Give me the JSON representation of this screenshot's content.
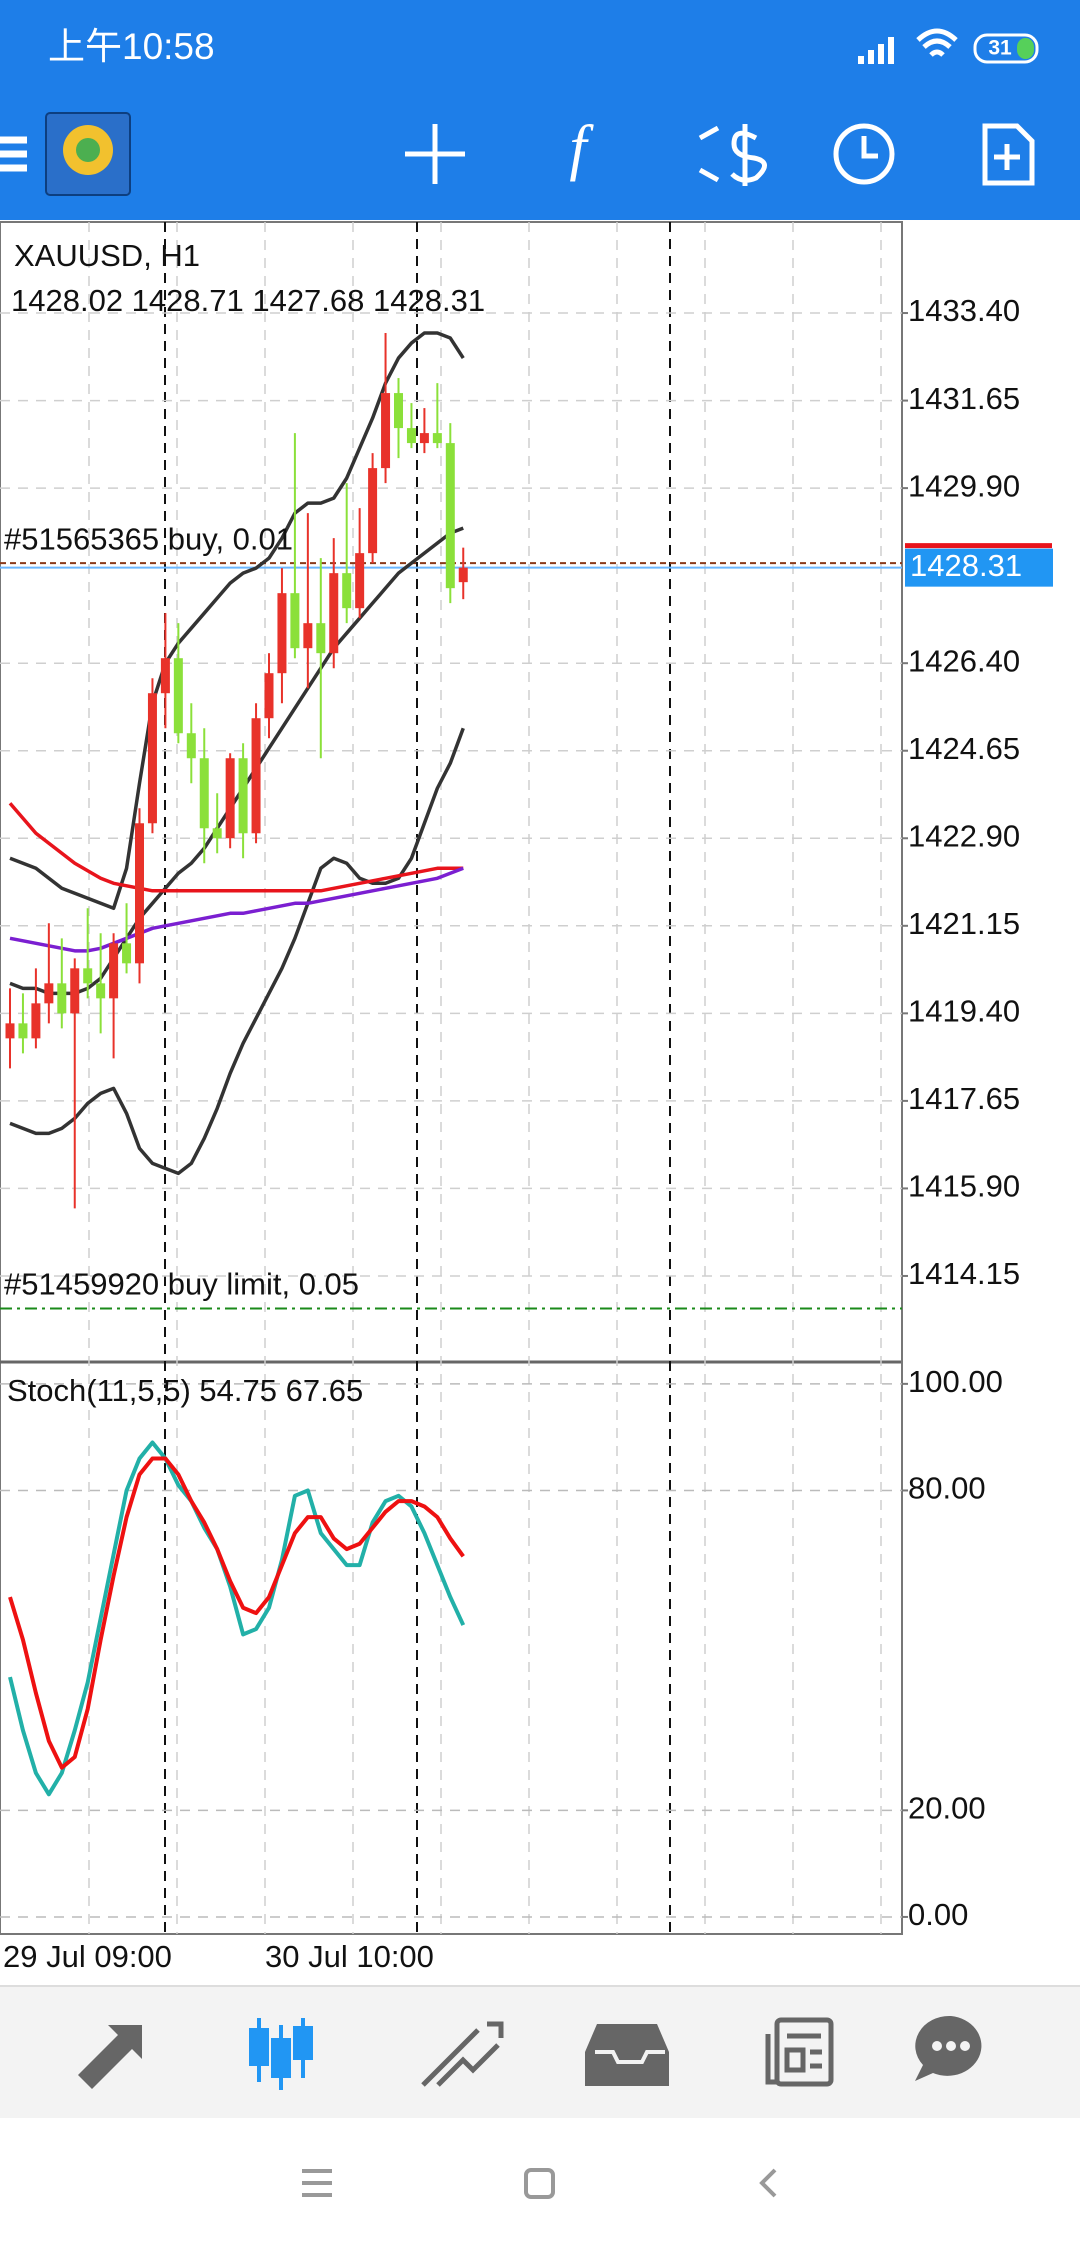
{
  "status_bar": {
    "time": "上午10:58",
    "battery": "31"
  },
  "chart": {
    "symbol": "XAUUSD, H1",
    "ohlc_text": "1428.02 1428.71 1427.68 1428.31",
    "ylim": [
      1412.43,
      1435.22
    ],
    "yticks": [
      {
        "value": 1433.4,
        "label": "1433.40"
      },
      {
        "value": 1431.65,
        "label": "1431.65"
      },
      {
        "value": 1429.9,
        "label": "1429.90"
      },
      {
        "value": 1426.4,
        "label": "1426.40"
      },
      {
        "value": 1424.65,
        "label": "1424.65"
      },
      {
        "value": 1422.9,
        "label": "1422.90"
      },
      {
        "value": 1421.15,
        "label": "1421.15"
      },
      {
        "value": 1419.4,
        "label": "1419.40"
      },
      {
        "value": 1417.65,
        "label": "1417.65"
      },
      {
        "value": 1415.9,
        "label": "1415.90"
      },
      {
        "value": 1414.15,
        "label": "1414.15"
      }
    ],
    "current_price": {
      "value": 1428.31,
      "label": "1428.31",
      "color": "#2196f3"
    },
    "bull_color": "#e8322a",
    "bear_color": "#8be03a",
    "open": [
      1418.9,
      1419.2,
      1418.9,
      1419.6,
      1420.0,
      1419.4,
      1420.3,
      1420.0,
      1419.7,
      1420.8,
      1420.4,
      1423.2,
      1425.8,
      1426.5,
      1425.0,
      1424.5,
      1423.1,
      1422.9,
      1424.5,
      1423.0,
      1425.3,
      1426.2,
      1427.8,
      1426.7,
      1427.2,
      1426.6,
      1428.2,
      1427.5,
      1428.6,
      1430.3,
      1431.8,
      1431.1,
      1430.8,
      1431.0,
      1430.8,
      1428.02
    ],
    "high": [
      1419.9,
      1419.8,
      1420.3,
      1421.2,
      1420.9,
      1420.5,
      1421.5,
      1421.0,
      1421.0,
      1421.6,
      1423.5,
      1426.1,
      1427.4,
      1427.2,
      1425.6,
      1425.1,
      1423.8,
      1424.6,
      1424.8,
      1425.6,
      1426.6,
      1428.3,
      1431.0,
      1429.4,
      1428.5,
      1428.9,
      1430.0,
      1429.5,
      1430.6,
      1433.0,
      1432.1,
      1431.6,
      1431.5,
      1432.0,
      1431.2,
      1428.71
    ],
    "low": [
      1418.3,
      1418.6,
      1418.7,
      1419.2,
      1419.1,
      1415.5,
      1419.7,
      1419.0,
      1418.5,
      1420.2,
      1420.0,
      1423.0,
      1425.1,
      1424.8,
      1424.0,
      1422.4,
      1422.6,
      1422.7,
      1422.5,
      1422.8,
      1424.9,
      1425.6,
      1426.5,
      1425.9,
      1424.5,
      1426.3,
      1427.2,
      1427.3,
      1428.4,
      1430.0,
      1430.5,
      1430.7,
      1430.6,
      1430.7,
      1427.6,
      1427.68
    ],
    "close": [
      1419.2,
      1418.9,
      1419.6,
      1420.0,
      1419.4,
      1420.3,
      1420.0,
      1419.7,
      1420.8,
      1420.4,
      1423.2,
      1425.8,
      1426.5,
      1425.0,
      1424.5,
      1423.1,
      1422.9,
      1424.5,
      1423.0,
      1425.3,
      1426.2,
      1427.8,
      1426.7,
      1427.2,
      1426.6,
      1428.2,
      1427.5,
      1428.6,
      1430.3,
      1431.8,
      1431.1,
      1430.8,
      1431.0,
      1430.8,
      1427.9,
      1428.31
    ],
    "lines": [
      {
        "color": "#333333",
        "values": [
          1422.5,
          1422.4,
          1422.3,
          1422.1,
          1421.9,
          1421.8,
          1421.7,
          1421.6,
          1421.5,
          1422.3,
          1424.0,
          1425.6,
          1426.4,
          1426.8,
          1427.1,
          1427.4,
          1427.7,
          1428.0,
          1428.2,
          1428.3,
          1428.5,
          1428.9,
          1429.4,
          1429.6,
          1429.6,
          1429.7,
          1430.1,
          1430.7,
          1431.3,
          1432.0,
          1432.5,
          1432.8,
          1433.0,
          1433.0,
          1432.9,
          1432.5
        ]
      },
      {
        "color": "#333333",
        "values": [
          1420.0,
          1419.9,
          1419.9,
          1419.8,
          1419.8,
          1419.8,
          1419.9,
          1420.1,
          1420.5,
          1420.9,
          1421.3,
          1421.6,
          1421.9,
          1422.2,
          1422.4,
          1422.7,
          1423.1,
          1423.5,
          1423.9,
          1424.3,
          1424.7,
          1425.1,
          1425.5,
          1425.9,
          1426.3,
          1426.7,
          1427.0,
          1427.3,
          1427.6,
          1427.9,
          1428.2,
          1428.4,
          1428.6,
          1428.8,
          1429.0,
          1429.1
        ]
      },
      {
        "color": "#333333",
        "values": [
          1417.2,
          1417.1,
          1417.0,
          1417.0,
          1417.1,
          1417.3,
          1417.6,
          1417.8,
          1417.9,
          1417.4,
          1416.7,
          1416.4,
          1416.3,
          1416.2,
          1416.4,
          1416.9,
          1417.5,
          1418.2,
          1418.8,
          1419.3,
          1419.8,
          1420.3,
          1420.9,
          1421.6,
          1422.3,
          1422.5,
          1422.4,
          1422.1,
          1422.0,
          1422.0,
          1422.1,
          1422.5,
          1423.2,
          1423.9,
          1424.4,
          1425.1
        ]
      },
      {
        "color": "#e8141c",
        "values": [
          1423.6,
          1423.3,
          1423.0,
          1422.8,
          1422.6,
          1422.4,
          1422.25,
          1422.1,
          1422.0,
          1421.95,
          1421.9,
          1421.85,
          1421.85,
          1421.85,
          1421.85,
          1421.85,
          1421.85,
          1421.85,
          1421.85,
          1421.85,
          1421.85,
          1421.85,
          1421.85,
          1421.85,
          1421.85,
          1421.9,
          1421.95,
          1422.0,
          1422.05,
          1422.1,
          1422.15,
          1422.2,
          1422.25,
          1422.3,
          1422.3,
          1422.3
        ]
      },
      {
        "color": "#7b1fd1",
        "values": [
          1420.9,
          1420.85,
          1420.8,
          1420.75,
          1420.7,
          1420.65,
          1420.65,
          1420.7,
          1420.8,
          1420.9,
          1421.0,
          1421.1,
          1421.15,
          1421.2,
          1421.25,
          1421.3,
          1421.35,
          1421.4,
          1421.4,
          1421.45,
          1421.5,
          1421.55,
          1421.6,
          1421.6,
          1421.65,
          1421.7,
          1421.75,
          1421.8,
          1421.85,
          1421.9,
          1421.95,
          1422.0,
          1422.05,
          1422.1,
          1422.2,
          1422.3
        ]
      }
    ],
    "orders": [
      {
        "label": "#51565365 buy, 0.01",
        "price": 1428.4,
        "color": "#8b3a1a"
      },
      {
        "label": "#51459920 buy limit, 0.05",
        "price": 1413.5,
        "color": "#1a8a1a"
      }
    ],
    "x_labels": [
      "29 Jul 09:00",
      "30 Jul 10:00"
    ],
    "stoch": {
      "title": "Stoch(11,5,5) 54.75 67.65",
      "ylim": [
        -3.2,
        104.1
      ],
      "yticks": [
        {
          "value": 100,
          "label": "100.00"
        },
        {
          "value": 80,
          "label": "80.00"
        },
        {
          "value": 20,
          "label": "20.00"
        },
        {
          "value": 0,
          "label": "0.00"
        }
      ],
      "main": {
        "color": "#22b0a8",
        "values": [
          45,
          35,
          27,
          23,
          27,
          35,
          44,
          56,
          68,
          80,
          86,
          89,
          86,
          81,
          78,
          73,
          69,
          62,
          53,
          54,
          58,
          67,
          79,
          80,
          72,
          69,
          66,
          66,
          74,
          78,
          79,
          77,
          72,
          66,
          60,
          54.75
        ]
      },
      "signal": {
        "color": "#ee1111",
        "values": [
          60,
          52,
          42,
          33,
          28,
          30,
          39,
          52,
          64,
          75,
          83,
          86,
          86,
          83,
          78,
          74,
          69,
          63,
          58,
          57,
          60,
          66,
          72,
          75,
          75,
          71,
          69,
          70,
          73,
          76,
          78,
          78,
          77,
          75,
          71,
          67.65
        ]
      }
    }
  }
}
